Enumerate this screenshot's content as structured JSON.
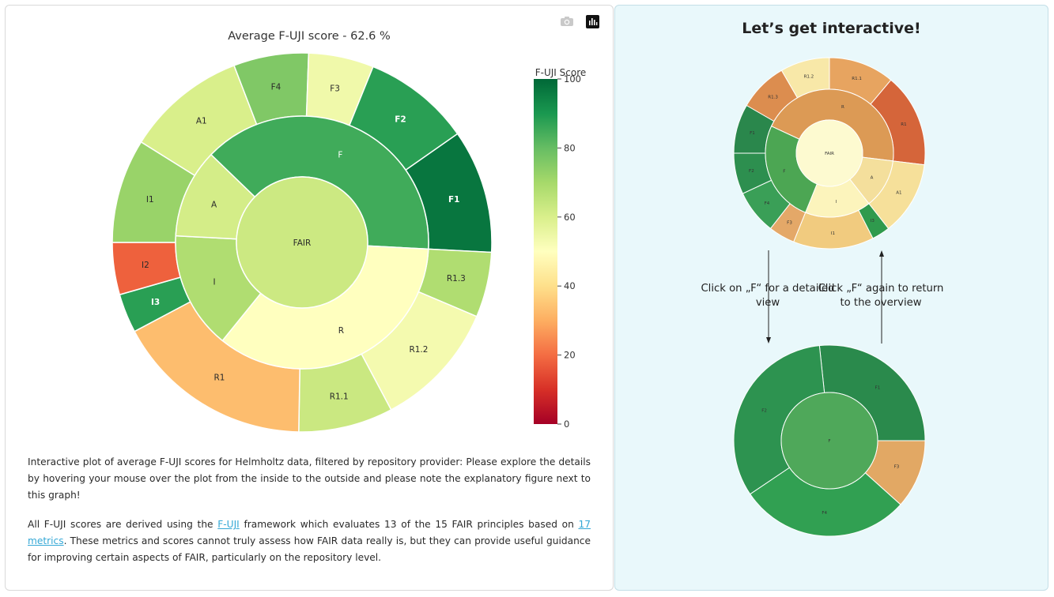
{
  "main_chart_toolbar": {
    "camera_icon": "camera-icon",
    "plotly_icon": "plotly-logo-icon"
  },
  "chart_data": [
    {
      "type": "sunburst",
      "title": "Average F-UJI score - 62.6 %",
      "colorbar": {
        "title": "F-UJI Score",
        "ticks": [
          "100",
          "80",
          "60",
          "40",
          "20",
          "0"
        ],
        "range": [
          0,
          100
        ]
      },
      "root": {
        "label": "FAIR",
        "value": 62.6
      },
      "inner": [
        {
          "label": "F",
          "value": 85
        },
        {
          "label": "R",
          "value": 50
        },
        {
          "label": "I",
          "value": 68
        },
        {
          "label": "A",
          "value": 61
        }
      ],
      "outer": [
        {
          "label": "F1",
          "value": 97,
          "parent": "F"
        },
        {
          "label": "R1.3",
          "value": 68,
          "parent": "R"
        },
        {
          "label": "R1.2",
          "value": 53,
          "parent": "R"
        },
        {
          "label": "R1.1",
          "value": 63,
          "parent": "R"
        },
        {
          "label": "R1",
          "value": 33,
          "parent": "R"
        },
        {
          "label": "I3",
          "value": 88,
          "parent": "I"
        },
        {
          "label": "I2",
          "value": 18,
          "parent": "I"
        },
        {
          "label": "I1",
          "value": 72,
          "parent": "I"
        },
        {
          "label": "A1",
          "value": 60,
          "parent": "A"
        },
        {
          "label": "F4",
          "value": 76,
          "parent": "F"
        },
        {
          "label": "F3",
          "value": 54,
          "parent": "F"
        },
        {
          "label": "F2",
          "value": 88,
          "parent": "F"
        }
      ]
    },
    {
      "type": "sunburst",
      "title": "",
      "root": {
        "label": "FAIR"
      },
      "inner": [
        {
          "label": "R",
          "color": "#dc9a55"
        },
        {
          "label": "A",
          "color": "#f4df9c"
        },
        {
          "label": "I",
          "color": "#fcf4bc"
        },
        {
          "label": "F",
          "color": "#4ca653"
        }
      ],
      "outer": [
        {
          "label": "R1.1",
          "color": "#e7a460"
        },
        {
          "label": "R1",
          "color": "#d5653a"
        },
        {
          "label": "A1",
          "color": "#f6e09a"
        },
        {
          "label": "I3",
          "color": "#2f9a4d"
        },
        {
          "label": "I1",
          "color": "#f1cb7f"
        },
        {
          "label": "F3",
          "color": "#e4a868"
        },
        {
          "label": "F4",
          "color": "#3a9f57"
        },
        {
          "label": "F2",
          "color": "#2d8f4f"
        },
        {
          "label": "F1",
          "color": "#2a874c"
        },
        {
          "label": "R1.3",
          "color": "#dc8d4f"
        },
        {
          "label": "R1.2",
          "color": "#f8e8a8"
        }
      ]
    },
    {
      "type": "sunburst",
      "title": "",
      "root": {
        "label": "F",
        "color": "#4fa85a"
      },
      "outer": [
        {
          "label": "F1",
          "color": "#2a8a4c"
        },
        {
          "label": "F3",
          "color": "#e2a864"
        },
        {
          "label": "F4",
          "color": "#31a052"
        },
        {
          "label": "F2",
          "color": "#2d9350"
        }
      ]
    }
  ],
  "description": {
    "p1": "Interactive plot of average F-UJI scores for Helmholtz data, filtered by repository provider: Please explore the details by hovering your mouse over the plot from the inside to the outside and please note the explanatory figure next to this graph!",
    "p2_part1": "All F-UJI scores are derived using the ",
    "link_fuji": "F-UJI",
    "p2_part2": " framework which evaluates 13 of the 15 FAIR principles based on ",
    "link_metrics": "17 metrics",
    "p2_part3": ". These metrics and scores cannot truly assess how FAIR data really is, but they can provide useful guidance for improving certain aspects of FAIR, particularly on the repository level."
  },
  "right_panel": {
    "title": "Let’s get interactive!",
    "note_left": "Click on „F“ for a detailed view",
    "note_right": "Click „F“ again to return to the overview"
  }
}
